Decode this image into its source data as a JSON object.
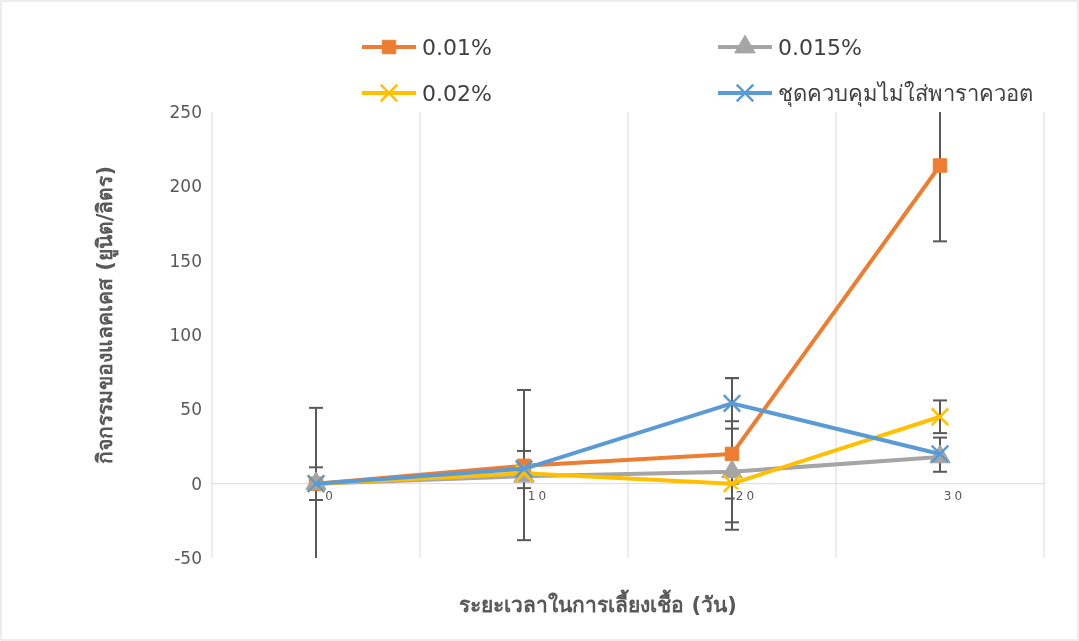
{
  "chart_data": {
    "type": "line",
    "xlabel": "ระยะเวลาในการเลี้ยงเชื้อ (วัน)",
    "ylabel": "กิจกรรมของแลคเคส (ยูนิต/ลิตร)",
    "categories": [
      "0",
      "10",
      "20",
      "30"
    ],
    "series": [
      {
        "name": "0.01%",
        "color": "#ed7d31",
        "marker": "square",
        "values": [
          0,
          12,
          20,
          214
        ],
        "errors": [
          [
            -50,
            51
          ],
          [
            -38,
            63
          ],
          [
            -31,
            71
          ],
          [
            163,
            250
          ]
        ]
      },
      {
        "name": "0.015%",
        "color": "#a5a5a5",
        "marker": "triangle",
        "values": [
          0,
          5,
          8,
          18
        ],
        "errors": [
          null,
          null,
          [
            -26,
            42
          ],
          null
        ]
      },
      {
        "name": "0.02%",
        "color": "#ffc000",
        "marker": "cross",
        "values": [
          0,
          7,
          0,
          45
        ],
        "errors": [
          null,
          null,
          [
            -10,
            0
          ],
          [
            34,
            56
          ]
        ]
      },
      {
        "name": "ชุดควบคุมไม่ใส่พาราควอต",
        "color": "#5b9bd5",
        "marker": "cross",
        "values": [
          0,
          10,
          54,
          20
        ],
        "errors": [
          [
            -11,
            11
          ],
          [
            -3,
            22
          ],
          [
            37,
            71
          ],
          [
            8,
            31
          ]
        ]
      }
    ],
    "ylim": [
      -50,
      250
    ],
    "yticks": [
      -50,
      0,
      50,
      100,
      150,
      200,
      250
    ],
    "grid": "x",
    "legend": "top"
  }
}
